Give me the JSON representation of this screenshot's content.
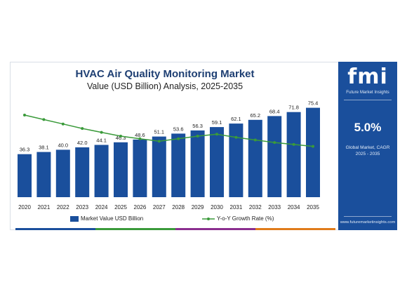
{
  "title": "HVAC Air Quality Monitoring Market",
  "subtitle": "Value (USD Billion) Analysis, 2025-2035",
  "side_panel": {
    "logo": "fmi",
    "logo_subtitle": "Future Market Insights",
    "cagr_value": "5.0%",
    "cagr_label": "Global Market, CAGR 2025 - 2035",
    "website": "www.futuremarketinsights.com"
  },
  "colors": {
    "bar": "#1a4f9c",
    "line": "#3a9a3a",
    "title": "#1e3f73",
    "strip": [
      "#1a4f9c",
      "#3a9a3a",
      "#8b2f8f",
      "#e07b1a"
    ]
  },
  "chart_data": {
    "type": "bar",
    "title": "HVAC Air Quality Monitoring Market",
    "subtitle": "Value (USD Billion) Analysis, 2025-2035",
    "categories": [
      "2020",
      "2021",
      "2022",
      "2023",
      "2024",
      "2025",
      "2026",
      "2027",
      "2028",
      "2029",
      "2030",
      "2031",
      "2032",
      "2033",
      "2034",
      "2035"
    ],
    "series": [
      {
        "name": "Market Value USD Billion",
        "type": "bar",
        "values": [
          36.3,
          38.1,
          40.0,
          42.0,
          44.1,
          46.3,
          48.6,
          51.1,
          53.6,
          56.3,
          59.1,
          62.1,
          65.2,
          68.4,
          71.8,
          75.4
        ],
        "labels": [
          "36.3",
          "38.1",
          "40.0",
          "42.0",
          "44.1",
          "46.3",
          "48.6",
          "51.1",
          "53.6",
          "56.3",
          "59.1",
          "62.1",
          "65.2",
          "68.4",
          "71.8",
          "75.4"
        ]
      },
      {
        "name": "Y-o-Y Growth Rate (%)",
        "type": "line",
        "values": [
          8.9,
          8.2,
          7.5,
          6.8,
          6.2,
          5.6,
          5.2,
          4.8,
          5.2,
          5.6,
          5.9,
          5.4,
          5.0,
          4.6,
          4.3,
          4.0
        ]
      }
    ],
    "grid": false,
    "legend": "bottom"
  }
}
